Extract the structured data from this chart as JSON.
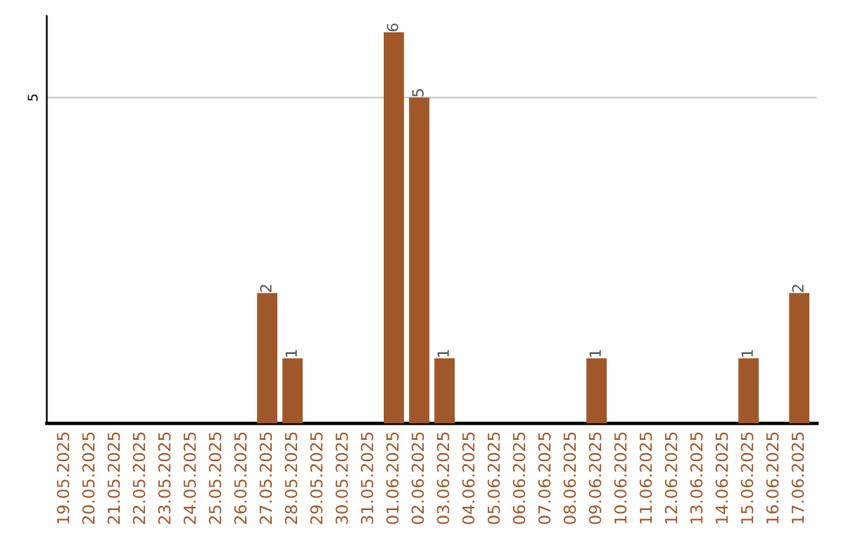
{
  "chart_data": {
    "type": "bar",
    "categories": [
      "19.05.2025",
      "20.05.2025",
      "21.05.2025",
      "22.05.2025",
      "23.05.2025",
      "24.05.2025",
      "25.05.2025",
      "26.05.2025",
      "27.05.2025",
      "28.05.2025",
      "29.05.2025",
      "30.05.2025",
      "31.05.2025",
      "01.06.2025",
      "02.06.2025",
      "03.06.2025",
      "04.06.2025",
      "05.06.2025",
      "06.06.2025",
      "07.06.2025",
      "08.06.2025",
      "09.06.2025",
      "10.06.2025",
      "11.06.2025",
      "12.06.2025",
      "13.06.2025",
      "14.06.2025",
      "15.06.2025",
      "16.06.2025",
      "17.06.2025"
    ],
    "values": [
      0,
      0,
      0,
      0,
      0,
      0,
      0,
      0,
      2,
      1,
      0,
      0,
      0,
      6,
      5,
      1,
      0,
      0,
      0,
      0,
      0,
      1,
      0,
      0,
      0,
      0,
      0,
      1,
      0,
      2
    ],
    "value_labels": [
      null,
      null,
      null,
      null,
      null,
      null,
      null,
      null,
      "2",
      "1",
      null,
      null,
      null,
      "6",
      "5",
      "1",
      null,
      null,
      null,
      null,
      null,
      "1",
      null,
      null,
      null,
      null,
      null,
      "1",
      null,
      "2"
    ],
    "color": "#a0572a",
    "ylim": [
      0,
      6.25
    ],
    "yticks": [
      5
    ],
    "grid": "y"
  }
}
